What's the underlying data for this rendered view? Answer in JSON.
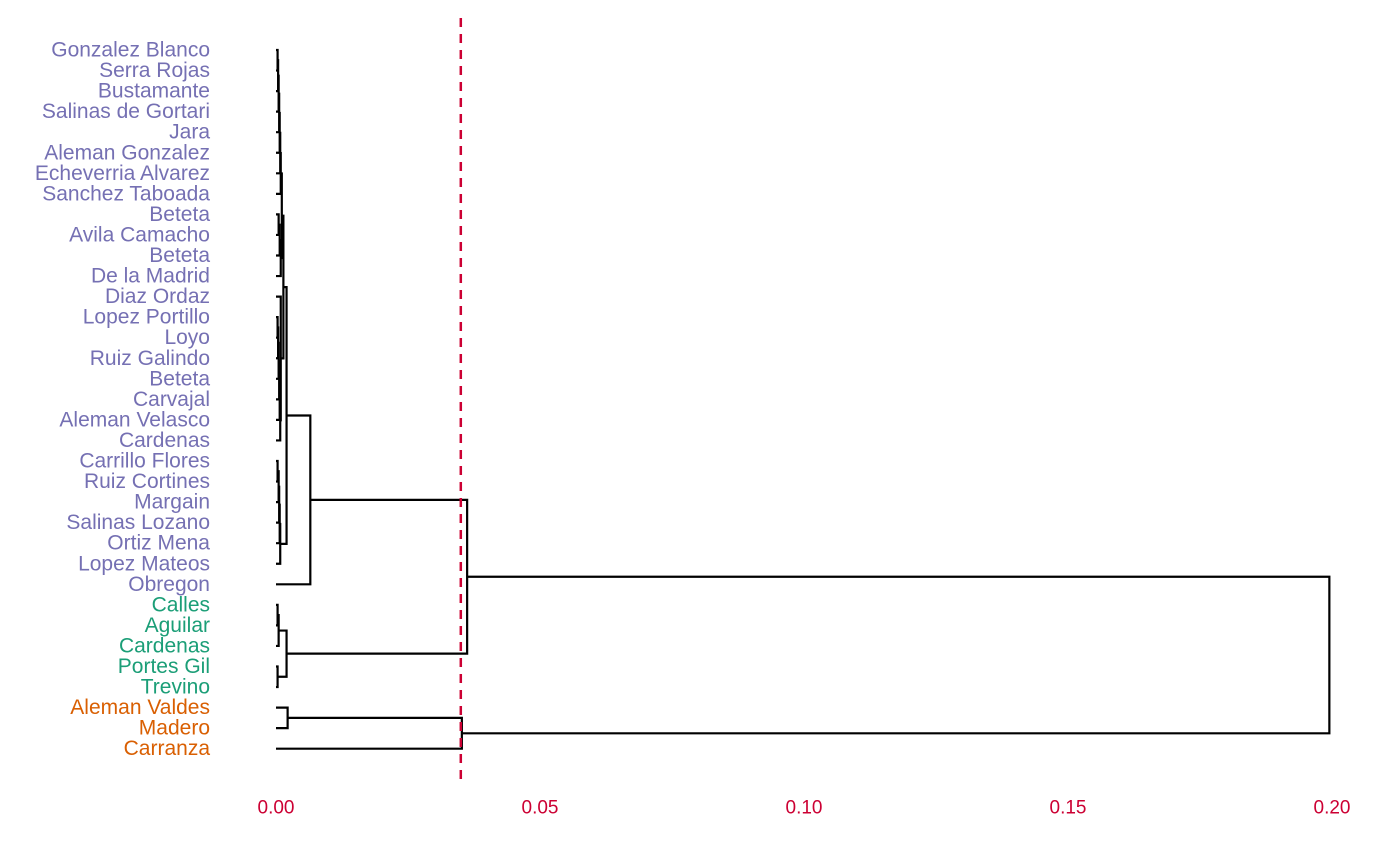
{
  "colors": {
    "cluster_1": "#7570b3",
    "cluster_2": "#1b9e77",
    "cluster_3": "#d95f02",
    "axis": "#cc0033",
    "cut_line": "#cc0033",
    "links": "#000000"
  },
  "chart_data": {
    "type": "dendrogram",
    "orientation": "horizontal",
    "title": "",
    "xlabel": "",
    "ylabel": "",
    "xlim": [
      0.0,
      0.2
    ],
    "x_ticks": [
      "0.00",
      "0.05",
      "0.10",
      "0.15",
      "0.20"
    ],
    "x_tick_values": [
      0.0,
      0.05,
      0.1,
      0.15,
      0.2
    ],
    "cut_height": 0.035,
    "grid": false,
    "leaves": [
      {
        "label": "Gonzalez Blanco",
        "cluster": "cluster_1"
      },
      {
        "label": "Serra Rojas",
        "cluster": "cluster_1"
      },
      {
        "label": "Bustamante",
        "cluster": "cluster_1"
      },
      {
        "label": "Salinas de Gortari",
        "cluster": "cluster_1"
      },
      {
        "label": "Jara",
        "cluster": "cluster_1"
      },
      {
        "label": "Aleman Gonzalez",
        "cluster": "cluster_1"
      },
      {
        "label": "Echeverria Alvarez",
        "cluster": "cluster_1"
      },
      {
        "label": "Sanchez Taboada",
        "cluster": "cluster_1"
      },
      {
        "label": "Beteta",
        "cluster": "cluster_1"
      },
      {
        "label": "Avila Camacho",
        "cluster": "cluster_1"
      },
      {
        "label": "Beteta",
        "cluster": "cluster_1"
      },
      {
        "label": "De la Madrid",
        "cluster": "cluster_1"
      },
      {
        "label": "Diaz Ordaz",
        "cluster": "cluster_1"
      },
      {
        "label": "Lopez Portillo",
        "cluster": "cluster_1"
      },
      {
        "label": "Loyo",
        "cluster": "cluster_1"
      },
      {
        "label": "Ruiz Galindo",
        "cluster": "cluster_1"
      },
      {
        "label": "Beteta",
        "cluster": "cluster_1"
      },
      {
        "label": "Carvajal",
        "cluster": "cluster_1"
      },
      {
        "label": "Aleman Velasco",
        "cluster": "cluster_1"
      },
      {
        "label": "Cardenas",
        "cluster": "cluster_1"
      },
      {
        "label": "Carrillo Flores",
        "cluster": "cluster_1"
      },
      {
        "label": "Ruiz Cortines",
        "cluster": "cluster_1"
      },
      {
        "label": "Margain",
        "cluster": "cluster_1"
      },
      {
        "label": "Salinas Lozano",
        "cluster": "cluster_1"
      },
      {
        "label": "Ortiz Mena",
        "cluster": "cluster_1"
      },
      {
        "label": "Lopez Mateos",
        "cluster": "cluster_1"
      },
      {
        "label": "Obregon",
        "cluster": "cluster_1"
      },
      {
        "label": "Calles",
        "cluster": "cluster_2"
      },
      {
        "label": "Aguilar",
        "cluster": "cluster_2"
      },
      {
        "label": "Cardenas",
        "cluster": "cluster_2"
      },
      {
        "label": "Portes Gil",
        "cluster": "cluster_2"
      },
      {
        "label": "Trevino",
        "cluster": "cluster_2"
      },
      {
        "label": "Aleman Valdes",
        "cluster": "cluster_3"
      },
      {
        "label": "Madero",
        "cluster": "cluster_3"
      },
      {
        "label": "Carranza",
        "cluster": "cluster_3"
      }
    ],
    "merges": [
      {
        "a": "L0",
        "b": "L1",
        "height": 0.0003
      },
      {
        "a": "M0",
        "b": "L2",
        "height": 0.0004
      },
      {
        "a": "M1",
        "b": "L3",
        "height": 0.0005
      },
      {
        "a": "M2",
        "b": "L4",
        "height": 0.0006
      },
      {
        "a": "M3",
        "b": "L5",
        "height": 0.0007
      },
      {
        "a": "M4",
        "b": "L6",
        "height": 0.0008
      },
      {
        "a": "M5",
        "b": "L7",
        "height": 0.0009
      },
      {
        "a": "L8",
        "b": "L9",
        "height": 0.0005
      },
      {
        "a": "M7",
        "b": "L10",
        "height": 0.0007
      },
      {
        "a": "M8",
        "b": "L11",
        "height": 0.0009
      },
      {
        "a": "M6",
        "b": "M9",
        "height": 0.0011
      },
      {
        "a": "L13",
        "b": "L14",
        "height": 0.0003
      },
      {
        "a": "M11",
        "b": "L15",
        "height": 0.0004
      },
      {
        "a": "M12",
        "b": "L16",
        "height": 0.0005
      },
      {
        "a": "M13",
        "b": "L17",
        "height": 0.0006
      },
      {
        "a": "M14",
        "b": "L18",
        "height": 0.0007
      },
      {
        "a": "M15",
        "b": "L19",
        "height": 0.0008
      },
      {
        "a": "L12",
        "b": "M16",
        "height": 0.0009
      },
      {
        "a": "M10",
        "b": "M17",
        "height": 0.0014
      },
      {
        "a": "L20",
        "b": "L21",
        "height": 0.0003
      },
      {
        "a": "M19",
        "b": "L22",
        "height": 0.0005
      },
      {
        "a": "M20",
        "b": "L23",
        "height": 0.0006
      },
      {
        "a": "M21",
        "b": "L24",
        "height": 0.0007
      },
      {
        "a": "M22",
        "b": "L25",
        "height": 0.0008
      },
      {
        "a": "M18",
        "b": "M23",
        "height": 0.002
      },
      {
        "a": "M24",
        "b": "L26",
        "height": 0.0065
      },
      {
        "a": "L27",
        "b": "L28",
        "height": 0.0003
      },
      {
        "a": "M26",
        "b": "L29",
        "height": 0.0005
      },
      {
        "a": "L30",
        "b": "L31",
        "height": 0.0003
      },
      {
        "a": "M27",
        "b": "M28",
        "height": 0.002
      },
      {
        "a": "M25",
        "b": "M29",
        "height": 0.0362
      },
      {
        "a": "L32",
        "b": "L33",
        "height": 0.0022
      },
      {
        "a": "M31",
        "b": "L34",
        "height": 0.0352
      },
      {
        "a": "M30",
        "b": "M32",
        "height": 0.1995
      }
    ]
  }
}
